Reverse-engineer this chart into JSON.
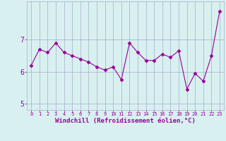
{
  "x": [
    0,
    1,
    2,
    3,
    4,
    5,
    6,
    7,
    8,
    9,
    10,
    11,
    12,
    13,
    14,
    15,
    16,
    17,
    18,
    19,
    20,
    21,
    22,
    23
  ],
  "y": [
    6.2,
    6.7,
    6.6,
    6.9,
    6.6,
    6.5,
    6.4,
    6.3,
    6.15,
    6.05,
    6.15,
    5.75,
    6.9,
    6.6,
    6.35,
    6.35,
    6.55,
    6.45,
    6.65,
    5.45,
    5.95,
    5.7,
    6.5,
    7.9
  ],
  "line_color": "#990099",
  "marker": "D",
  "marker_size": 2.5,
  "bg_color": "#d8f0f0",
  "grid_color": "#aaaacc",
  "xlabel": "Windchill (Refroidissement éolien,°C)",
  "ylim": [
    4.8,
    8.2
  ],
  "xlim": [
    -0.5,
    23.5
  ],
  "yticks": [
    5,
    6,
    7
  ],
  "xticks": [
    0,
    1,
    2,
    3,
    4,
    5,
    6,
    7,
    8,
    9,
    10,
    11,
    12,
    13,
    14,
    15,
    16,
    17,
    18,
    19,
    20,
    21,
    22,
    23
  ],
  "xlabel_fontsize": 6.5,
  "xtick_fontsize": 5.0,
  "ytick_fontsize": 7.0
}
